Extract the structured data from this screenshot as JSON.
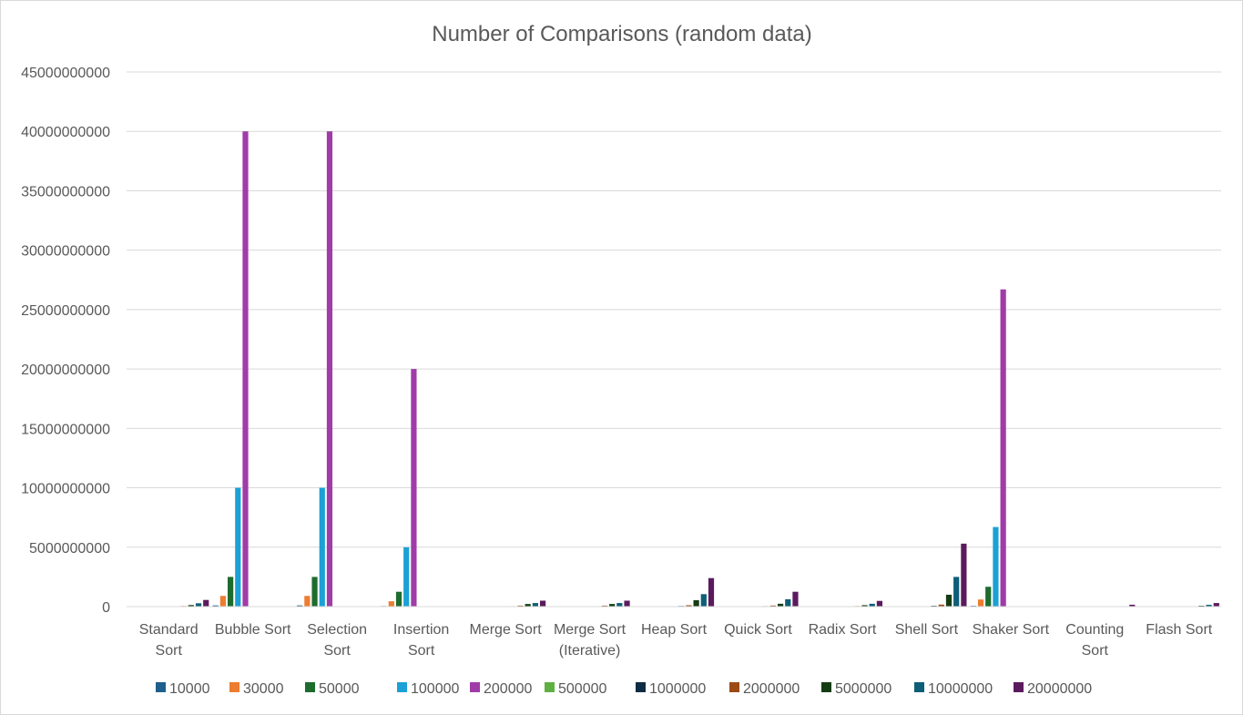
{
  "chart_data": {
    "type": "bar",
    "title": "Number of Comparisons (random data)",
    "xlabel": "",
    "ylabel": "",
    "ylim": [
      0,
      45000000000
    ],
    "yticks": [
      "0",
      "5000000000",
      "10000000000",
      "15000000000",
      "20000000000",
      "25000000000",
      "30000000000",
      "35000000000",
      "40000000000",
      "45000000000"
    ],
    "grid": true,
    "legend_position": "bottom",
    "categories": [
      [
        "Standard",
        "Sort"
      ],
      [
        "Bubble Sort"
      ],
      [
        "Selection",
        "Sort"
      ],
      [
        "Insertion",
        "Sort"
      ],
      [
        "Merge Sort"
      ],
      [
        "Merge Sort",
        "(Iterative)"
      ],
      [
        "Heap Sort"
      ],
      [
        "Quick Sort"
      ],
      [
        "Radix Sort"
      ],
      [
        "Shell Sort"
      ],
      [
        "Shaker Sort"
      ],
      [
        "Counting",
        "Sort"
      ],
      [
        "Flash Sort"
      ]
    ],
    "series": [
      {
        "name": "10000",
        "color": "#1f5f8b",
        "values": [
          160000,
          100000000,
          100000000,
          50000000,
          260000,
          260000,
          360000,
          300000,
          200000,
          400000,
          67000000,
          40000,
          150000
        ]
      },
      {
        "name": "30000",
        "color": "#ed7d31",
        "values": [
          550000,
          900000000,
          900000000,
          450000000,
          850000,
          850000,
          1200000,
          1000000,
          600000,
          1300000,
          600000000,
          120000,
          450000
        ]
      },
      {
        "name": "50000",
        "color": "#1e6b2e",
        "values": [
          950000,
          2500000000,
          2500000000,
          1250000000,
          1500000,
          1500000,
          2100000,
          1700000,
          1000000,
          2400000,
          1670000000,
          200000,
          750000
        ]
      },
      {
        "name": "100000",
        "color": "#1ba1d6",
        "values": [
          2000000,
          10000000000,
          10000000000,
          5000000000,
          3200000,
          3200000,
          4600000,
          3600000,
          2000000,
          5300000,
          6700000000,
          400000,
          1500000
        ]
      },
      {
        "name": "200000",
        "color": "#a03ca8",
        "values": [
          4300000,
          40000000000,
          40000000000,
          20000000000,
          6800000,
          6800000,
          9700000,
          7700000,
          4000000,
          11000000,
          26700000000,
          800000,
          3000000
        ]
      },
      {
        "name": "500000",
        "color": "#5fb043",
        "values": [
          11500000,
          0,
          0,
          0,
          18500000,
          18500000,
          26000000,
          20500000,
          12000000,
          33000000,
          0,
          2000000,
          7500000
        ]
      },
      {
        "name": "1000000",
        "color": "#0e2c44",
        "values": [
          24000000,
          0,
          0,
          0,
          39000000,
          39000000,
          55000000,
          43000000,
          24000000,
          72000000,
          0,
          4000000,
          15000000
        ]
      },
      {
        "name": "2000000",
        "color": "#9c4a16",
        "values": [
          50000000,
          0,
          0,
          0,
          82000000,
          82000000,
          115000000,
          90000000,
          48000000,
          170000000,
          0,
          8000000,
          30000000
        ]
      },
      {
        "name": "5000000",
        "color": "#143d14",
        "values": [
          130000000,
          0,
          0,
          0,
          220000000,
          220000000,
          540000000,
          240000000,
          120000000,
          1000000000,
          0,
          20000000,
          75000000
        ]
      },
      {
        "name": "10000000",
        "color": "#0e5e78",
        "values": [
          280000000,
          0,
          0,
          0,
          300000000,
          300000000,
          1050000000,
          620000000,
          240000000,
          2500000000,
          0,
          40000000,
          150000000
        ]
      },
      {
        "name": "20000000",
        "color": "#5c1a5e",
        "values": [
          560000000,
          0,
          0,
          0,
          500000000,
          500000000,
          2400000000,
          1250000000,
          480000000,
          5300000000,
          0,
          160000000,
          300000000
        ]
      }
    ]
  }
}
